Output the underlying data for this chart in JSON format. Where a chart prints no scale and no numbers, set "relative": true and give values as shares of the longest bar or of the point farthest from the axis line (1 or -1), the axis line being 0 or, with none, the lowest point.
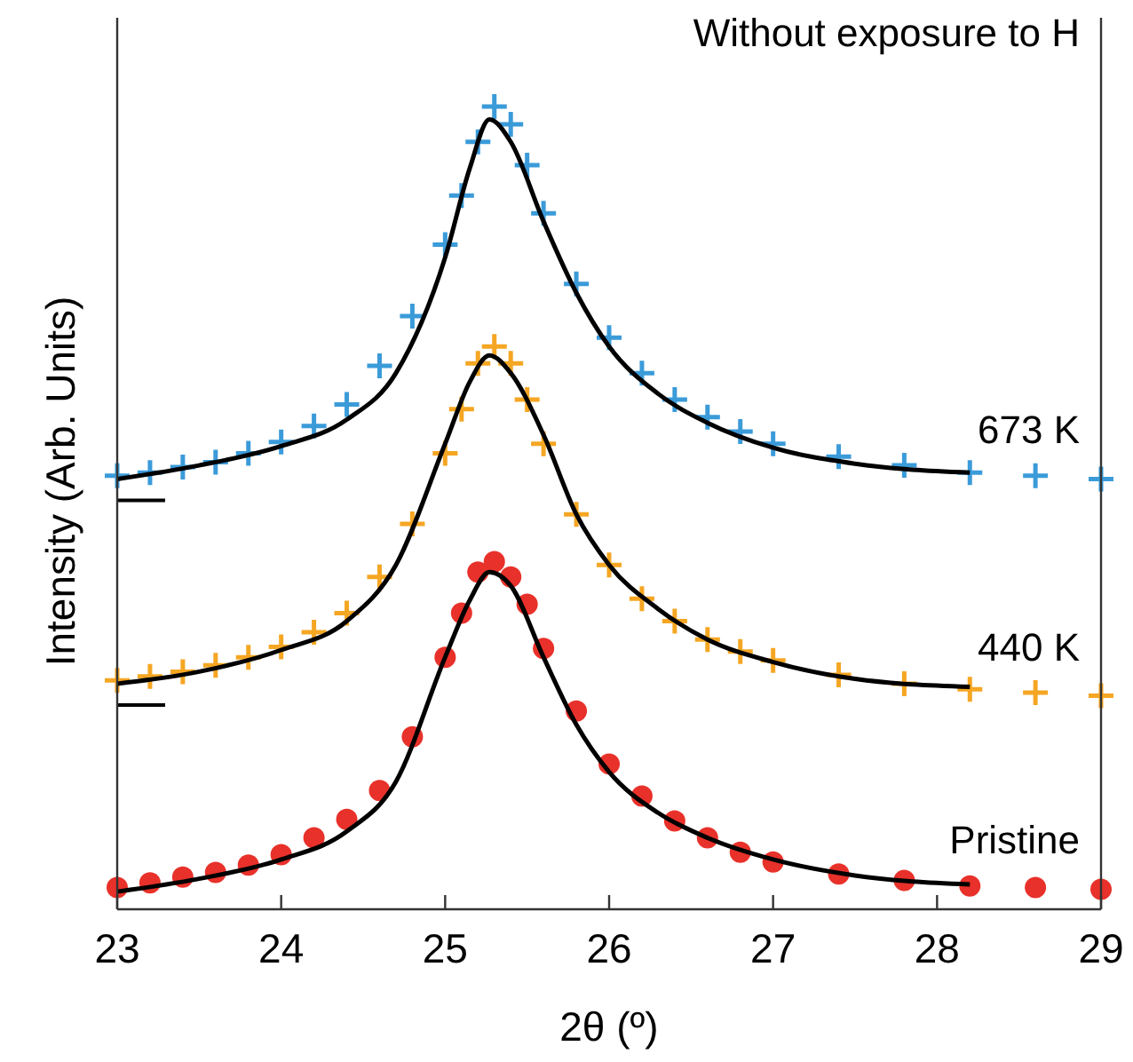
{
  "chart_data": {
    "type": "line",
    "relative": true,
    "xlabel": "2θ (º)",
    "ylabel": "Intensity (Arb. Units)",
    "annotations": [
      "Without exposure to H"
    ],
    "xlim": [
      23,
      29
    ],
    "xticks": [
      23,
      24,
      25,
      26,
      27,
      28,
      29
    ],
    "tick_labels": "x",
    "grid": false,
    "x": [
      23,
      23.2,
      23.4,
      23.6,
      23.8,
      24,
      24.2,
      24.4,
      24.6,
      24.8,
      25,
      25.1,
      25.2,
      25.3,
      25.4,
      25.5,
      25.6,
      25.8,
      26,
      26.2,
      26.4,
      26.6,
      26.8,
      27,
      27.4,
      27.8,
      28.2,
      28.6,
      29
    ],
    "series": [
      {
        "name": "673 K",
        "type": "scatter",
        "color": "#3b9bd9",
        "marker": "cross",
        "values": [
          0.54,
          0.544,
          0.551,
          0.557,
          0.568,
          0.582,
          0.602,
          0.629,
          0.677,
          0.739,
          0.828,
          0.889,
          0.956,
          1,
          0.978,
          0.927,
          0.867,
          0.779,
          0.712,
          0.668,
          0.635,
          0.613,
          0.595,
          0.58,
          0.564,
          0.553,
          0.544,
          0.54,
          0.536
        ]
      },
      {
        "name": "440 K",
        "type": "scatter",
        "color": "#f5a623",
        "marker": "cross",
        "values": [
          0.285,
          0.29,
          0.296,
          0.304,
          0.314,
          0.327,
          0.345,
          0.369,
          0.414,
          0.48,
          0.568,
          0.623,
          0.68,
          0.701,
          0.68,
          0.635,
          0.58,
          0.492,
          0.429,
          0.387,
          0.359,
          0.336,
          0.321,
          0.31,
          0.292,
          0.281,
          0.274,
          0.27,
          0.266
        ]
      },
      {
        "name": "Pristine",
        "type": "scatter",
        "color": "#e8312a",
        "marker": "circle",
        "values": [
          0.027,
          0.033,
          0.04,
          0.046,
          0.055,
          0.068,
          0.089,
          0.112,
          0.148,
          0.215,
          0.314,
          0.369,
          0.42,
          0.433,
          0.414,
          0.38,
          0.325,
          0.247,
          0.181,
          0.141,
          0.11,
          0.089,
          0.071,
          0.059,
          0.044,
          0.036,
          0.029,
          0.027,
          0.025
        ]
      },
      {
        "color": "#000000",
        "x": [
          23,
          23.5,
          24,
          24.4,
          24.7,
          25,
          25.15,
          25.27,
          25.4,
          25.6,
          25.8,
          26,
          26.3,
          26.6,
          27,
          27.5,
          28.2
        ],
        "values": [
          0.536,
          0.553,
          0.577,
          0.61,
          0.668,
          0.812,
          0.923,
          0.984,
          0.956,
          0.857,
          0.768,
          0.701,
          0.642,
          0.606,
          0.575,
          0.555,
          0.544
        ]
      },
      {
        "color": "#000000",
        "x": [
          23,
          23.5,
          24,
          24.4,
          24.7,
          25,
          25.15,
          25.27,
          25.4,
          25.6,
          25.8,
          26,
          26.3,
          26.6,
          27,
          27.5,
          28.2
        ],
        "values": [
          0.281,
          0.296,
          0.323,
          0.359,
          0.429,
          0.58,
          0.657,
          0.69,
          0.668,
          0.591,
          0.492,
          0.429,
          0.374,
          0.336,
          0.308,
          0.287,
          0.277
        ]
      },
      {
        "color": "#000000",
        "x": [
          23,
          23.5,
          24,
          24.4,
          24.7,
          25,
          25.15,
          25.27,
          25.4,
          25.6,
          25.8,
          26,
          26.3,
          26.6,
          27,
          27.5,
          28.2
        ],
        "values": [
          0.022,
          0.038,
          0.062,
          0.097,
          0.159,
          0.314,
          0.385,
          0.42,
          0.403,
          0.314,
          0.23,
          0.171,
          0.12,
          0.089,
          0.062,
          0.042,
          0.031
        ]
      }
    ]
  }
}
